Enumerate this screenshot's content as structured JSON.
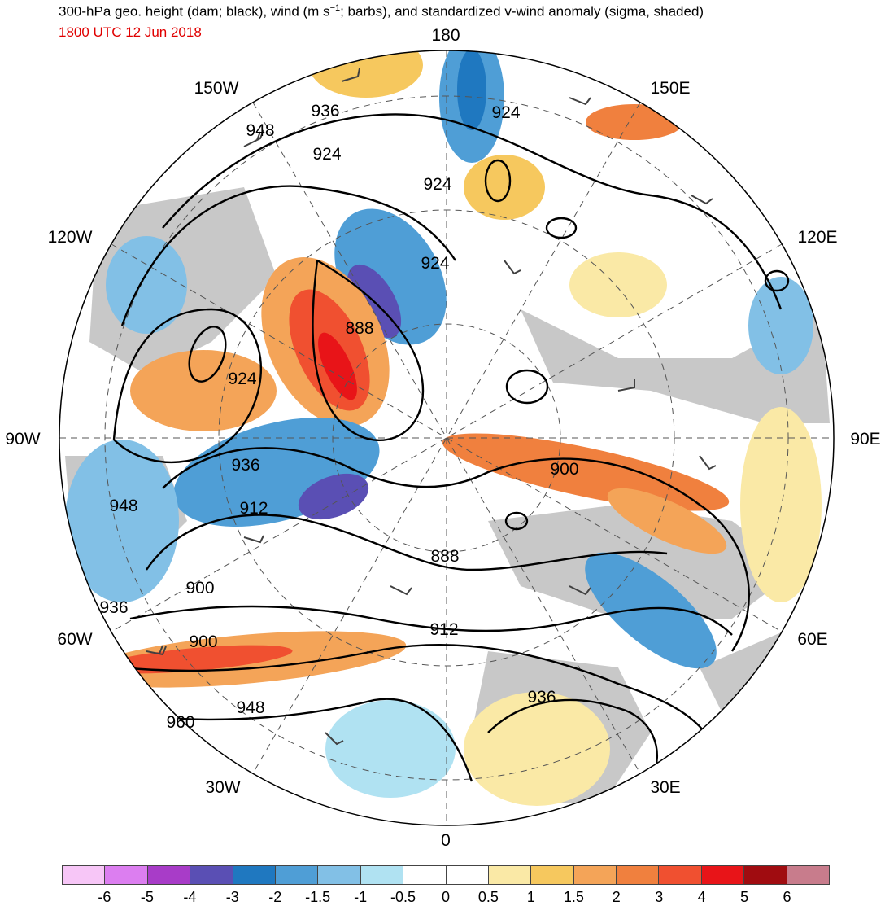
{
  "header": {
    "title_main": "300-hPa geo. height (dam; black), wind (m s",
    "title_sup": "−1",
    "title_rest": "; barbs), and standardized v-wind anomaly (sigma, shaded)",
    "valid_time": "1800 UTC 12 Jun 2018",
    "valid_time_color": "#e00000"
  },
  "map": {
    "projection": "north-polar-stereographic",
    "longitude_labels": [
      "180",
      "150E",
      "120E",
      "90E",
      "60E",
      "30E",
      "0",
      "30W",
      "60W",
      "90W",
      "120W",
      "150W"
    ],
    "contour_labels": [
      "936",
      "948",
      "924",
      "924",
      "924",
      "888",
      "924",
      "924",
      "936",
      "948",
      "912",
      "900",
      "900",
      "888",
      "912",
      "936",
      "936",
      "948",
      "960",
      "900"
    ],
    "ocean_color": "#ffffff",
    "land_color": "#c8c8c8",
    "contour_color": "#000000",
    "barb_color": "#404040"
  },
  "colorbar": {
    "tick_labels": [
      "-6",
      "-5",
      "-4",
      "-3",
      "-2",
      "-1.5",
      "-1",
      "-0.5",
      "0",
      "0.5",
      "1",
      "1.5",
      "2",
      "3",
      "4",
      "5",
      "6"
    ],
    "colors": [
      "#f7c6f7",
      "#dc7ef0",
      "#a83cc8",
      "#5a4fb4",
      "#1f78c0",
      "#4f9ed6",
      "#82c0e6",
      "#b0e2f2",
      "#ffffff",
      "#ffffff",
      "#fae9a6",
      "#f6c85e",
      "#f4a458",
      "#f0803e",
      "#f05030",
      "#e81418",
      "#a00c10",
      "#c87c8c"
    ]
  }
}
